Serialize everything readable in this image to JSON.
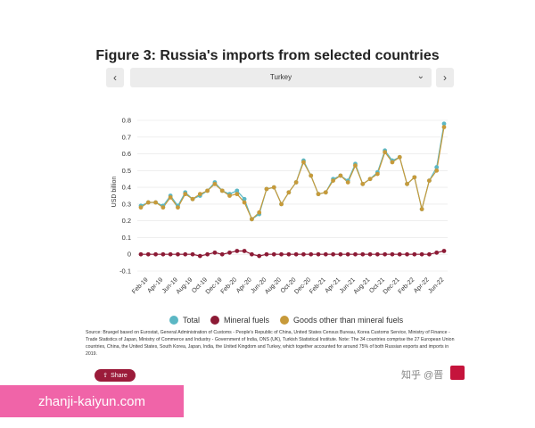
{
  "title": "Figure 3: Russia's imports from selected countries",
  "nav": {
    "prev_icon": "chevron-left-icon",
    "next_icon": "chevron-right-icon",
    "prev_glyph": "‹",
    "next_glyph": "›"
  },
  "select": {
    "value": "Turkey",
    "chevron_glyph": "⌄"
  },
  "chart_data": {
    "type": "line",
    "ylabel": "USD billion",
    "xlabel": "",
    "ylim": [
      -0.1,
      0.8
    ],
    "yticks": [
      -0.1,
      0,
      0.1,
      0.2,
      0.3,
      0.4,
      0.5,
      0.6,
      0.7,
      0.8
    ],
    "x_tick_labels": [
      "Feb-19",
      "Apr-19",
      "Jun-19",
      "Aug-19",
      "Oct-19",
      "Dec-19",
      "Feb-20",
      "Apr-20",
      "Jun-20",
      "Aug-20",
      "Oct-20",
      "Dec-20",
      "Feb-21",
      "Apr-21",
      "Jun-21",
      "Aug-21",
      "Oct-21",
      "Dec-21",
      "Feb-22",
      "Apr-22",
      "Jun-22"
    ],
    "categories": [
      "Jan-19",
      "Feb-19",
      "Mar-19",
      "Apr-19",
      "May-19",
      "Jun-19",
      "Jul-19",
      "Aug-19",
      "Sep-19",
      "Oct-19",
      "Nov-19",
      "Dec-19",
      "Jan-20",
      "Feb-20",
      "Mar-20",
      "Apr-20",
      "May-20",
      "Jun-20",
      "Jul-20",
      "Aug-20",
      "Sep-20",
      "Oct-20",
      "Nov-20",
      "Dec-20",
      "Jan-21",
      "Feb-21",
      "Mar-21",
      "Apr-21",
      "May-21",
      "Jun-21",
      "Jul-21",
      "Aug-21",
      "Sep-21",
      "Oct-21",
      "Nov-21",
      "Dec-21",
      "Jan-22",
      "Feb-22",
      "Mar-22",
      "Apr-22",
      "May-22",
      "Jun-22"
    ],
    "series": [
      {
        "name": "Total",
        "color": "#5bb7c4",
        "values": [
          0.29,
          0.31,
          0.31,
          0.29,
          0.35,
          0.29,
          0.37,
          0.33,
          0.35,
          0.38,
          0.43,
          0.38,
          0.36,
          0.38,
          0.33,
          0.21,
          0.24,
          0.39,
          0.4,
          0.3,
          0.37,
          0.43,
          0.56,
          0.47,
          0.36,
          0.37,
          0.45,
          0.47,
          0.44,
          0.54,
          0.42,
          0.45,
          0.49,
          0.62,
          0.56,
          0.58,
          0.42,
          0.46,
          0.27,
          0.44,
          0.52,
          0.78
        ]
      },
      {
        "name": "Mineral fuels",
        "color": "#8c1a35",
        "values": [
          0.0,
          0.0,
          0.0,
          0.0,
          0.0,
          0.0,
          0.0,
          0.0,
          -0.01,
          0.0,
          0.01,
          0.0,
          0.01,
          0.02,
          0.02,
          0.0,
          -0.01,
          0.0,
          0.0,
          0.0,
          0.0,
          0.0,
          0.0,
          0.0,
          0.0,
          0.0,
          0.0,
          0.0,
          0.0,
          0.0,
          0.0,
          0.0,
          0.0,
          0.0,
          0.0,
          0.0,
          0.0,
          0.0,
          0.0,
          0.0,
          0.01,
          0.02
        ]
      },
      {
        "name": "Goods other than mineral fuels",
        "color": "#c79a3a",
        "values": [
          0.28,
          0.31,
          0.31,
          0.28,
          0.34,
          0.28,
          0.36,
          0.33,
          0.36,
          0.38,
          0.42,
          0.38,
          0.35,
          0.36,
          0.31,
          0.21,
          0.25,
          0.39,
          0.4,
          0.3,
          0.37,
          0.43,
          0.55,
          0.47,
          0.36,
          0.37,
          0.44,
          0.47,
          0.43,
          0.53,
          0.42,
          0.45,
          0.48,
          0.61,
          0.55,
          0.58,
          0.42,
          0.46,
          0.27,
          0.44,
          0.5,
          0.76
        ]
      }
    ],
    "grid": true,
    "legend": "bottom"
  },
  "source": "Source: Bruegel based on Eurostat, General Administration of Customs - People's Republic of China, United States Census Bureau, Korea Customs Service, Ministry of Finance - Trade Statistics of Japan, Ministry of Commerce and Industry - Government of India, ONS (UK), Turkish Statistical Institute. Note: The 34 countries comprise the 27 European Union countries, China, the United States, South Korea, Japan, India, the United Kingdom and Turkey, which together accounted for around 75% of both Russian exports and imports in 2019.",
  "share": {
    "label": "Share",
    "icon": "share-icon",
    "glyph": "⇪"
  },
  "watermark": "zhanji-kaiyun.com",
  "zhihu_text": "知乎 @晋"
}
